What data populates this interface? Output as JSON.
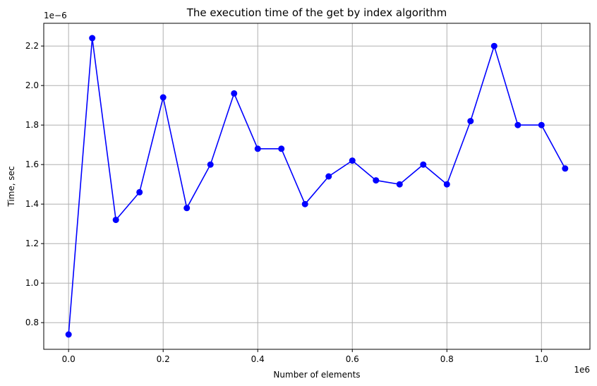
{
  "chart_data": {
    "type": "line",
    "title": "The execution time of the get by index algorithm",
    "xlabel": "Number of elements",
    "ylabel": "Time, sec",
    "x_offset_label": "1e6",
    "y_offset_label": "1e−6",
    "xlim": [
      -0.0525,
      1.1025
    ],
    "ylim": [
      0.665,
      2.315
    ],
    "x_ticks": [
      0.0,
      0.2,
      0.4,
      0.6,
      0.8,
      1.0
    ],
    "x_tick_labels": [
      "0.0",
      "0.2",
      "0.4",
      "0.6",
      "0.8",
      "1.0"
    ],
    "y_ticks": [
      0.8,
      1.0,
      1.2,
      1.4,
      1.6,
      1.8,
      2.0,
      2.2
    ],
    "y_tick_labels": [
      "0.8",
      "1.0",
      "1.2",
      "1.4",
      "1.6",
      "1.8",
      "2.0",
      "2.2"
    ],
    "grid": true,
    "series": [
      {
        "color": "#0000ff",
        "marker": "circle",
        "x": [
          0.0,
          0.05,
          0.1,
          0.15,
          0.2,
          0.25,
          0.3,
          0.35,
          0.4,
          0.45,
          0.5,
          0.55,
          0.6,
          0.65,
          0.7,
          0.75,
          0.8,
          0.85,
          0.9,
          0.95,
          1.0,
          1.05
        ],
        "y": [
          0.74,
          2.24,
          1.32,
          1.46,
          1.94,
          1.38,
          1.6,
          1.96,
          1.68,
          1.68,
          1.4,
          1.54,
          1.62,
          1.52,
          1.5,
          1.6,
          1.5,
          1.82,
          2.2,
          1.8,
          1.8,
          1.58
        ]
      }
    ]
  }
}
